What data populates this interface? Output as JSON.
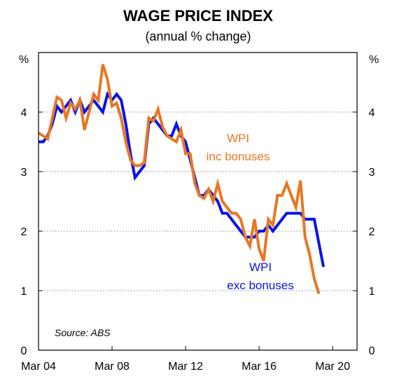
{
  "chart_data": {
    "type": "line",
    "title": "WAGE PRICE INDEX",
    "subtitle": "(annual % change)",
    "ylabel_left": "%",
    "ylabel_right": "%",
    "ylim": [
      0,
      5
    ],
    "yticks": [
      0,
      1,
      2,
      3,
      4
    ],
    "xlim": [
      2004.17,
      2021.5
    ],
    "xticks": [
      {
        "value": 2004.17,
        "label": "Mar 04"
      },
      {
        "value": 2008.17,
        "label": "Mar 08"
      },
      {
        "value": 2012.17,
        "label": "Mar 12"
      },
      {
        "value": 2016.17,
        "label": "Mar 16"
      },
      {
        "value": 2020.17,
        "label": "Mar 20"
      }
    ],
    "grid": "horizontal dotted",
    "source": "Source: ABS",
    "series": [
      {
        "name": "WPI exc bonuses",
        "label_lines": [
          "WPI",
          "exc bonuses"
        ],
        "color": "#0a14e6",
        "points": [
          [
            2004.17,
            3.5
          ],
          [
            2004.42,
            3.5
          ],
          [
            2004.67,
            3.6
          ],
          [
            2004.92,
            3.8
          ],
          [
            2005.17,
            4.1
          ],
          [
            2005.42,
            4.0
          ],
          [
            2005.67,
            4.1
          ],
          [
            2005.92,
            4.2
          ],
          [
            2006.17,
            4.0
          ],
          [
            2006.42,
            4.2
          ],
          [
            2006.67,
            4.0
          ],
          [
            2006.92,
            4.1
          ],
          [
            2007.17,
            4.2
          ],
          [
            2007.42,
            4.1
          ],
          [
            2007.67,
            4.0
          ],
          [
            2007.92,
            4.3
          ],
          [
            2008.17,
            4.2
          ],
          [
            2008.42,
            4.3
          ],
          [
            2008.67,
            4.2
          ],
          [
            2008.92,
            3.8
          ],
          [
            2009.17,
            3.3
          ],
          [
            2009.42,
            2.9
          ],
          [
            2009.67,
            3.0
          ],
          [
            2009.92,
            3.1
          ],
          [
            2010.17,
            3.8
          ],
          [
            2010.42,
            3.9
          ],
          [
            2010.67,
            3.8
          ],
          [
            2010.92,
            3.7
          ],
          [
            2011.17,
            3.6
          ],
          [
            2011.42,
            3.6
          ],
          [
            2011.67,
            3.8
          ],
          [
            2011.92,
            3.6
          ],
          [
            2012.17,
            3.5
          ],
          [
            2012.42,
            3.2
          ],
          [
            2012.67,
            2.9
          ],
          [
            2012.92,
            2.6
          ],
          [
            2013.17,
            2.6
          ],
          [
            2013.42,
            2.7
          ],
          [
            2013.67,
            2.6
          ],
          [
            2013.92,
            2.5
          ],
          [
            2014.17,
            2.3
          ],
          [
            2014.42,
            2.3
          ],
          [
            2014.67,
            2.2
          ],
          [
            2014.92,
            2.1
          ],
          [
            2015.17,
            2.0
          ],
          [
            2015.42,
            1.9
          ],
          [
            2015.67,
            1.9
          ],
          [
            2015.92,
            1.9
          ],
          [
            2016.17,
            2.0
          ],
          [
            2016.42,
            2.0
          ],
          [
            2016.67,
            2.1
          ],
          [
            2016.92,
            2.0
          ],
          [
            2017.17,
            2.1
          ],
          [
            2017.42,
            2.2
          ],
          [
            2017.67,
            2.3
          ],
          [
            2017.92,
            2.3
          ],
          [
            2018.17,
            2.3
          ],
          [
            2018.42,
            2.3
          ],
          [
            2018.67,
            2.2
          ],
          [
            2018.92,
            2.2
          ],
          [
            2019.17,
            2.2
          ],
          [
            2019.42,
            1.8
          ],
          [
            2019.67,
            1.4
          ]
        ]
      },
      {
        "name": "WPI inc bonuses",
        "label_lines": [
          "WPI",
          "inc bonuses"
        ],
        "color": "#e87722",
        "points": [
          [
            2004.17,
            3.65
          ],
          [
            2004.42,
            3.6
          ],
          [
            2004.67,
            3.55
          ],
          [
            2004.92,
            3.9
          ],
          [
            2005.17,
            4.25
          ],
          [
            2005.42,
            4.2
          ],
          [
            2005.67,
            3.9
          ],
          [
            2005.92,
            4.15
          ],
          [
            2006.17,
            4.05
          ],
          [
            2006.42,
            4.2
          ],
          [
            2006.67,
            3.7
          ],
          [
            2006.92,
            4.0
          ],
          [
            2007.17,
            4.3
          ],
          [
            2007.42,
            4.2
          ],
          [
            2007.67,
            4.8
          ],
          [
            2007.92,
            4.55
          ],
          [
            2008.17,
            4.1
          ],
          [
            2008.42,
            4.15
          ],
          [
            2008.67,
            3.9
          ],
          [
            2008.92,
            3.5
          ],
          [
            2009.17,
            3.2
          ],
          [
            2009.42,
            3.1
          ],
          [
            2009.67,
            3.1
          ],
          [
            2009.92,
            3.15
          ],
          [
            2010.17,
            3.9
          ],
          [
            2010.42,
            3.85
          ],
          [
            2010.67,
            4.05
          ],
          [
            2010.92,
            3.75
          ],
          [
            2011.17,
            3.6
          ],
          [
            2011.42,
            3.55
          ],
          [
            2011.67,
            3.5
          ],
          [
            2011.92,
            3.7
          ],
          [
            2012.17,
            3.3
          ],
          [
            2012.42,
            3.3
          ],
          [
            2012.67,
            2.8
          ],
          [
            2012.92,
            2.6
          ],
          [
            2013.17,
            2.55
          ],
          [
            2013.42,
            2.7
          ],
          [
            2013.67,
            2.5
          ],
          [
            2013.92,
            2.8
          ],
          [
            2014.17,
            2.5
          ],
          [
            2014.42,
            2.4
          ],
          [
            2014.67,
            2.3
          ],
          [
            2014.92,
            2.3
          ],
          [
            2015.17,
            2.2
          ],
          [
            2015.42,
            1.9
          ],
          [
            2015.67,
            1.75
          ],
          [
            2015.92,
            2.2
          ],
          [
            2016.17,
            1.7
          ],
          [
            2016.42,
            1.5
          ],
          [
            2016.67,
            2.2
          ],
          [
            2016.92,
            2.1
          ],
          [
            2017.17,
            2.6
          ],
          [
            2017.42,
            2.6
          ],
          [
            2017.67,
            2.8
          ],
          [
            2017.92,
            2.6
          ],
          [
            2018.17,
            2.4
          ],
          [
            2018.42,
            2.85
          ],
          [
            2018.67,
            1.9
          ],
          [
            2018.92,
            1.6
          ],
          [
            2019.17,
            1.2
          ],
          [
            2019.42,
            0.95
          ]
        ]
      }
    ]
  }
}
